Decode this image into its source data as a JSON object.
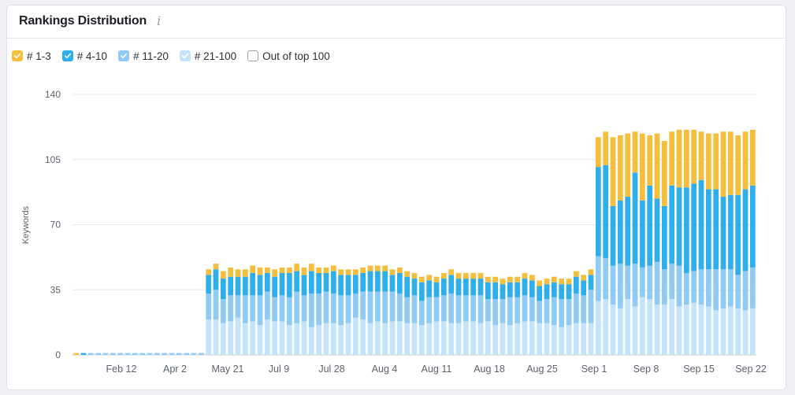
{
  "card": {
    "title": "Rankings Distribution",
    "info_icon": "info-icon"
  },
  "legend": [
    {
      "label": "# 1-3",
      "color": "#f6bf3b",
      "checked": true
    },
    {
      "label": "# 4-10",
      "color": "#2faeec",
      "checked": true
    },
    {
      "label": "# 11-20",
      "color": "#8ecbf6",
      "checked": true
    },
    {
      "label": "# 21-100",
      "color": "#c3e4fa",
      "checked": true
    },
    {
      "label": "Out of top 100",
      "color": "#ffffff",
      "checked": false
    }
  ],
  "chart_data": {
    "type": "bar",
    "stacked": true,
    "ylabel": "Keywords",
    "ylim": [
      0,
      140
    ],
    "yticks": [
      0,
      35,
      70,
      105,
      140
    ],
    "xtick_labels": [
      "Feb 12",
      "Apr 2",
      "May 21",
      "Jul 9",
      "Jul 28",
      "Aug 4",
      "Aug 11",
      "Aug 18",
      "Aug 25",
      "Sep 1",
      "Sep 8",
      "Sep 15",
      "Sep 22"
    ],
    "grid": true,
    "legend_position": "top-left",
    "series": [
      {
        "name": "# 21-100",
        "color": "#c3e4fa",
        "values": [
          0,
          0,
          0,
          0,
          0,
          0,
          0,
          0,
          0,
          0,
          0,
          0,
          0,
          0,
          0,
          0,
          0,
          0,
          19,
          19,
          17,
          18,
          20,
          17,
          18,
          16,
          19,
          18,
          18,
          16,
          17,
          18,
          15,
          16,
          17,
          17,
          16,
          17,
          20,
          19,
          17,
          18,
          17,
          18,
          18,
          17,
          17,
          16,
          17,
          18,
          18,
          17,
          17,
          18,
          18,
          17,
          18,
          16,
          17,
          16,
          17,
          18,
          18,
          17,
          17,
          16,
          15,
          16,
          17,
          17,
          17,
          29,
          30,
          27,
          25,
          30,
          26,
          31,
          30,
          27,
          27,
          30,
          26,
          27,
          28,
          27,
          26,
          24,
          25,
          26,
          25,
          24,
          25
        ]
      },
      {
        "name": "# 11-20",
        "color": "#8ecbf6",
        "values": [
          0,
          0,
          1,
          1,
          1,
          1,
          1,
          1,
          1,
          1,
          1,
          1,
          1,
          1,
          1,
          1,
          1,
          1,
          14,
          16,
          13,
          14,
          12,
          15,
          14,
          16,
          15,
          13,
          14,
          15,
          17,
          14,
          18,
          17,
          17,
          16,
          16,
          15,
          13,
          15,
          17,
          16,
          17,
          16,
          15,
          14,
          15,
          13,
          14,
          13,
          14,
          16,
          15,
          14,
          14,
          15,
          12,
          14,
          13,
          15,
          14,
          14,
          13,
          12,
          13,
          15,
          15,
          14,
          16,
          15,
          18,
          24,
          22,
          21,
          24,
          18,
          23,
          16,
          18,
          23,
          19,
          19,
          22,
          17,
          17,
          19,
          20,
          22,
          21,
          20,
          18,
          21,
          22
        ]
      },
      {
        "name": "# 4-10",
        "color": "#2faeec",
        "values": [
          0,
          1,
          0,
          0,
          0,
          0,
          0,
          0,
          0,
          0,
          0,
          0,
          0,
          0,
          0,
          0,
          0,
          0,
          10,
          11,
          11,
          10,
          10,
          10,
          12,
          11,
          10,
          11,
          12,
          13,
          11,
          11,
          12,
          11,
          10,
          12,
          11,
          11,
          10,
          10,
          11,
          11,
          11,
          9,
          11,
          11,
          9,
          10,
          9,
          8,
          9,
          10,
          9,
          9,
          9,
          9,
          9,
          9,
          8,
          8,
          8,
          9,
          9,
          8,
          8,
          8,
          8,
          8,
          9,
          8,
          8,
          48,
          50,
          32,
          34,
          37,
          49,
          36,
          43,
          34,
          34,
          42,
          42,
          46,
          47,
          48,
          43,
          43,
          39,
          40,
          43,
          44,
          44
        ]
      },
      {
        "name": "# 1-3",
        "color": "#f6bf3b",
        "values": [
          1,
          0,
          0,
          0,
          0,
          0,
          0,
          0,
          0,
          0,
          0,
          0,
          0,
          0,
          0,
          0,
          0,
          0,
          3,
          3,
          4,
          5,
          4,
          4,
          4,
          4,
          3,
          4,
          3,
          3,
          4,
          4,
          4,
          3,
          3,
          3,
          3,
          3,
          3,
          3,
          3,
          3,
          3,
          3,
          3,
          3,
          3,
          3,
          3,
          3,
          3,
          3,
          3,
          3,
          3,
          3,
          3,
          3,
          3,
          3,
          3,
          3,
          3,
          3,
          3,
          3,
          3,
          3,
          3,
          3,
          3,
          16,
          18,
          37,
          35,
          34,
          22,
          36,
          27,
          35,
          35,
          29,
          31,
          31,
          29,
          26,
          30,
          30,
          35,
          34,
          32,
          31,
          30
        ]
      },
      {
        "name": "Out of top 100",
        "color": "#ffffff",
        "values": []
      }
    ]
  }
}
